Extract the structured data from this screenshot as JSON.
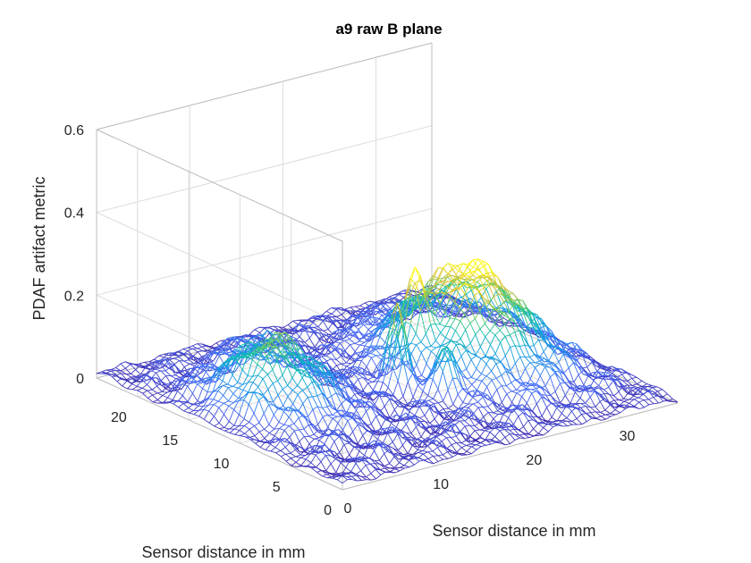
{
  "chart_data": {
    "type": "surface",
    "title": "a9 raw B plane",
    "xlabel": "Sensor distance in mm",
    "ylabel": "Sensor distance in mm",
    "zlabel": "PDAF artifact metric",
    "xlim": [
      0,
      36
    ],
    "ylim": [
      0,
      24
    ],
    "zlim": [
      0,
      0.6
    ],
    "xticks": [
      "0",
      "10",
      "20",
      "30"
    ],
    "yticks": [
      "0",
      "5",
      "10",
      "15",
      "20"
    ],
    "zticks": [
      "0",
      "0.2",
      "0.4",
      "0.6"
    ],
    "grid": true,
    "colormap": "parula",
    "features": [
      {
        "x": 7,
        "y": 13,
        "z": 0.15
      },
      {
        "x": 27,
        "y": 12,
        "z": 0.22
      },
      {
        "x": 18,
        "y": 11,
        "z": 0.18
      },
      {
        "x": 22,
        "y": 13,
        "z": 0.16
      }
    ],
    "baseline_z": 0.02
  }
}
